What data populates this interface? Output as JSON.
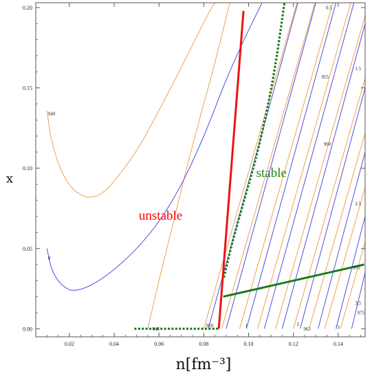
{
  "chart_data": {
    "type": "line",
    "title": "",
    "xlabel": "n[fm⁻³]",
    "ylabel": "x",
    "xlim": [
      0.005,
      0.152
    ],
    "ylim": [
      -0.005,
      0.203
    ],
    "grid": false,
    "x_ticks": [
      {
        "value": 0.02,
        "label": "0.02"
      },
      {
        "value": 0.04,
        "label": "0.04"
      },
      {
        "value": 0.06,
        "label": "0.06"
      },
      {
        "value": 0.08,
        "label": "0.08"
      },
      {
        "value": 0.1,
        "label": "0.10"
      },
      {
        "value": 0.12,
        "label": "0.12"
      },
      {
        "value": 0.14,
        "label": "0.14"
      }
    ],
    "y_ticks": [
      {
        "value": 0.0,
        "label": "0.00"
      },
      {
        "value": 0.05,
        "label": "0.05"
      },
      {
        "value": 0.1,
        "label": "0.10"
      },
      {
        "value": 0.15,
        "label": "0.15"
      },
      {
        "value": 0.2,
        "label": "0.20"
      }
    ],
    "orange_contours": [
      {
        "points": [
          [
            0.01,
            0.136
          ],
          [
            0.012,
            0.118
          ],
          [
            0.016,
            0.1
          ],
          [
            0.021,
            0.088
          ],
          [
            0.026,
            0.083
          ],
          [
            0.029,
            0.082
          ],
          [
            0.034,
            0.084
          ],
          [
            0.04,
            0.092
          ],
          [
            0.05,
            0.111
          ],
          [
            0.06,
            0.136
          ],
          [
            0.07,
            0.163
          ],
          [
            0.082,
            0.196
          ],
          [
            0.086,
            0.205
          ]
        ]
      },
      {
        "points": [
          [
            0.055,
            0.0
          ],
          [
            0.06,
            0.03
          ],
          [
            0.066,
            0.064
          ],
          [
            0.072,
            0.098
          ],
          [
            0.078,
            0.13
          ],
          [
            0.085,
            0.166
          ],
          [
            0.092,
            0.205
          ]
        ]
      },
      {
        "points": [
          [
            0.08,
            0.0
          ],
          [
            0.122,
            0.205
          ]
        ]
      },
      {
        "points": [
          [
            0.088,
            0.0
          ],
          [
            0.13,
            0.205
          ]
        ]
      },
      {
        "points": [
          [
            0.096,
            0.0
          ],
          [
            0.138,
            0.205
          ]
        ]
      },
      {
        "points": [
          [
            0.104,
            0.0
          ],
          [
            0.146,
            0.205
          ]
        ]
      },
      {
        "points": [
          [
            0.112,
            0.0
          ],
          [
            0.152,
            0.195
          ]
        ]
      },
      {
        "points": [
          [
            0.12,
            0.0
          ],
          [
            0.152,
            0.156
          ]
        ]
      },
      {
        "points": [
          [
            0.127,
            0.0
          ],
          [
            0.152,
            0.122
          ]
        ]
      },
      {
        "points": [
          [
            0.134,
            0.0
          ],
          [
            0.152,
            0.088
          ]
        ]
      },
      {
        "points": [
          [
            0.141,
            0.0
          ],
          [
            0.152,
            0.054
          ]
        ]
      }
    ],
    "blue_contours": [
      {
        "points": [
          [
            0.01,
            0.05
          ],
          [
            0.012,
            0.038
          ],
          [
            0.015,
            0.03
          ],
          [
            0.019,
            0.025
          ],
          [
            0.022,
            0.024
          ],
          [
            0.026,
            0.025
          ],
          [
            0.032,
            0.029
          ],
          [
            0.04,
            0.037
          ],
          [
            0.05,
            0.05
          ],
          [
            0.06,
            0.067
          ],
          [
            0.07,
            0.09
          ],
          [
            0.08,
            0.12
          ],
          [
            0.09,
            0.155
          ],
          [
            0.098,
            0.18
          ],
          [
            0.106,
            0.203
          ]
        ]
      },
      {
        "points": [
          [
            0.082,
            0.0
          ],
          [
            0.122,
            0.203
          ]
        ]
      },
      {
        "points": [
          [
            0.09,
            0.0
          ],
          [
            0.13,
            0.203
          ]
        ]
      },
      {
        "points": [
          [
            0.099,
            0.0
          ],
          [
            0.139,
            0.203
          ]
        ]
      },
      {
        "points": [
          [
            0.107,
            0.0
          ],
          [
            0.147,
            0.203
          ]
        ]
      },
      {
        "points": [
          [
            0.115,
            0.0
          ],
          [
            0.152,
            0.19
          ]
        ]
      },
      {
        "points": [
          [
            0.123,
            0.0
          ],
          [
            0.152,
            0.15
          ]
        ]
      },
      {
        "points": [
          [
            0.131,
            0.0
          ],
          [
            0.152,
            0.11
          ]
        ]
      },
      {
        "points": [
          [
            0.139,
            0.0
          ],
          [
            0.152,
            0.07
          ]
        ]
      },
      {
        "points": [
          [
            0.146,
            0.0
          ],
          [
            0.152,
            0.035
          ]
        ]
      }
    ],
    "contour_labels": [
      {
        "text": "940",
        "x": 0.0105,
        "y": 0.134
      },
      {
        "text": "0",
        "x": 0.0105,
        "y": 0.044
      },
      {
        "text": "945",
        "x": 0.057,
        "y": 0.0
      },
      {
        "text": "950",
        "x": 0.081,
        "y": 0.002
      },
      {
        "text": "1",
        "x": 0.0985,
        "y": 0.002
      },
      {
        "text": "2",
        "x": 0.1215,
        "y": 0.003
      },
      {
        "text": "965",
        "x": 0.1245,
        "y": 0.0
      },
      {
        "text": "3",
        "x": 0.1395,
        "y": 0.001
      },
      {
        "text": "975",
        "x": 0.1485,
        "y": 0.01
      },
      {
        "text": "3.5",
        "x": 0.1475,
        "y": 0.016
      },
      {
        "text": "970",
        "x": 0.1465,
        "y": 0.038
      },
      {
        "text": "2.5",
        "x": 0.1475,
        "y": 0.078
      },
      {
        "text": "960",
        "x": 0.1335,
        "y": 0.115
      },
      {
        "text": "955",
        "x": 0.1325,
        "y": 0.157
      },
      {
        "text": "1.5",
        "x": 0.1475,
        "y": 0.162
      },
      {
        "text": "0.5",
        "x": 0.1345,
        "y": 0.2
      }
    ],
    "red_line": {
      "points": [
        [
          0.0867,
          0.0
        ],
        [
          0.0977,
          0.198
        ]
      ]
    },
    "green_dotted": [
      {
        "points": [
          [
            0.049,
            0.0
          ],
          [
            0.087,
            0.0
          ]
        ]
      },
      {
        "points": [
          [
            0.089,
            0.032
          ],
          [
            0.093,
            0.055
          ],
          [
            0.098,
            0.08
          ],
          [
            0.103,
            0.105
          ],
          [
            0.108,
            0.135
          ],
          [
            0.112,
            0.165
          ],
          [
            0.116,
            0.203
          ]
        ]
      }
    ],
    "green_solid": {
      "points": [
        [
          0.0887,
          0.02
        ],
        [
          0.1515,
          0.04
        ]
      ]
    },
    "annotations": [
      {
        "text": "unstable",
        "x": 0.051,
        "y": 0.068,
        "color": "#ff0000"
      },
      {
        "text": "stable",
        "x": 0.1034,
        "y": 0.0945,
        "color": "#1a8a1a"
      }
    ],
    "colors": {
      "orange": "#f0a050",
      "blue": "#4b4fe0",
      "red": "#ee1111",
      "green": "#1a7a1a",
      "axis": "#555555"
    }
  }
}
